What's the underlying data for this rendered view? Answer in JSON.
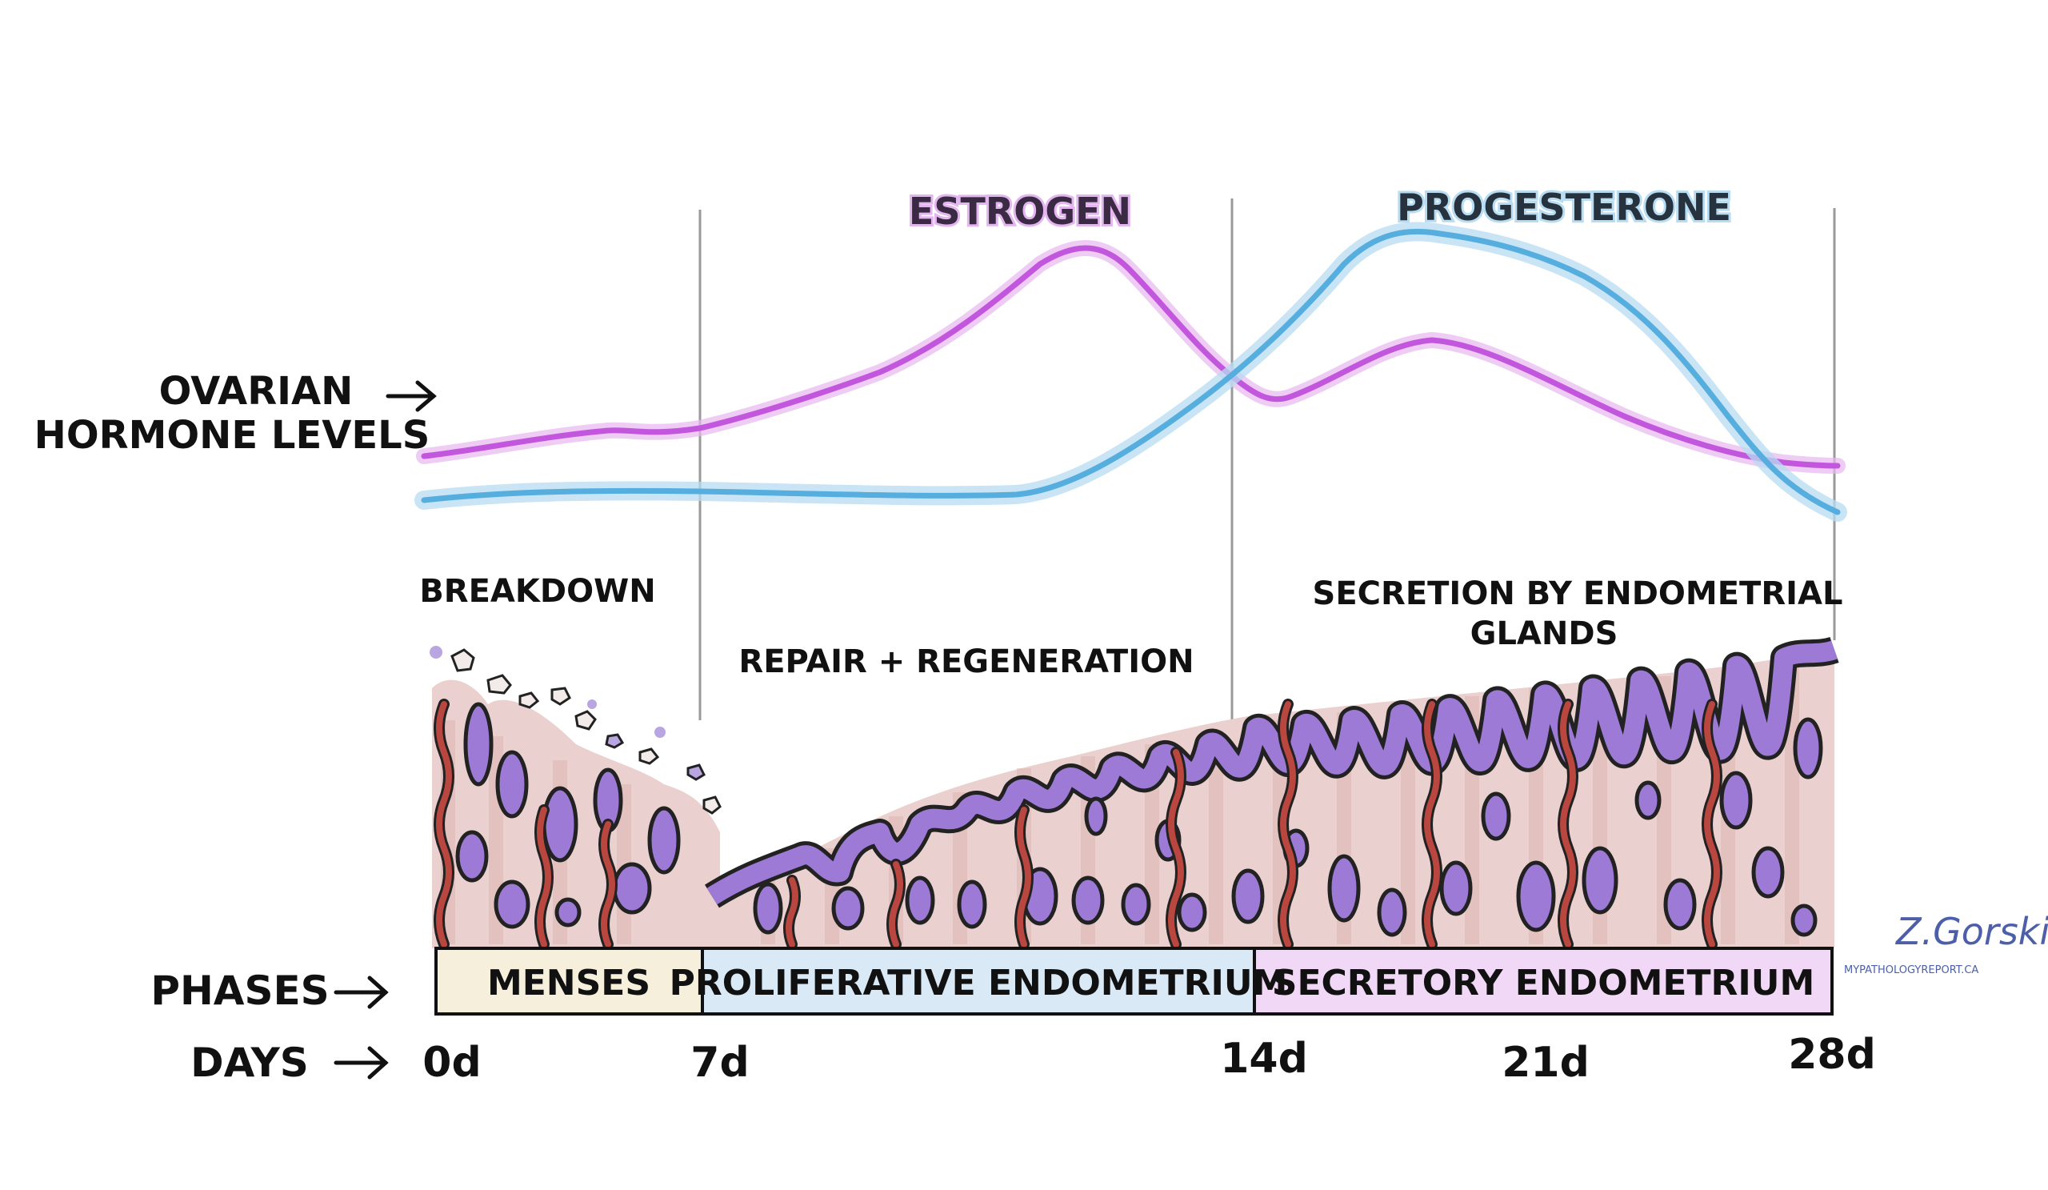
{
  "labels": {
    "ovarian_line1": "OVARIAN",
    "ovarian_line2": "HORMONE LEVELS",
    "estrogen": "ESTROGEN",
    "progesterone": "PROGESTERONE",
    "breakdown": "BREAKDOWN",
    "repair": "REPAIR + REGENERATION",
    "secretion_line1": "SECRETION BY ENDOMETRIAL",
    "secretion_line2": "GLANDS",
    "phases": "PHASES",
    "days": "DAYS"
  },
  "phases": [
    {
      "label": "MENSES",
      "color": "#f6efdc"
    },
    {
      "label": "PROLIFERATIVE ENDOMETRIUM",
      "color": "#d9eaf6"
    },
    {
      "label": "SECRETORY ENDOMETRIUM",
      "color": "#f1d8f6"
    }
  ],
  "days": [
    "0d",
    "7d",
    "14d",
    "21d",
    "28d"
  ],
  "signature": {
    "name": "Z.Gorski",
    "site": "MYPATHOLOGYREPORT.CA"
  },
  "colors": {
    "estrogen": "#c257de",
    "progesterone": "#56aedf",
    "gland": "#9d7ad6",
    "stroma": "#e9c8c6",
    "vessel": "#b9473f"
  }
}
